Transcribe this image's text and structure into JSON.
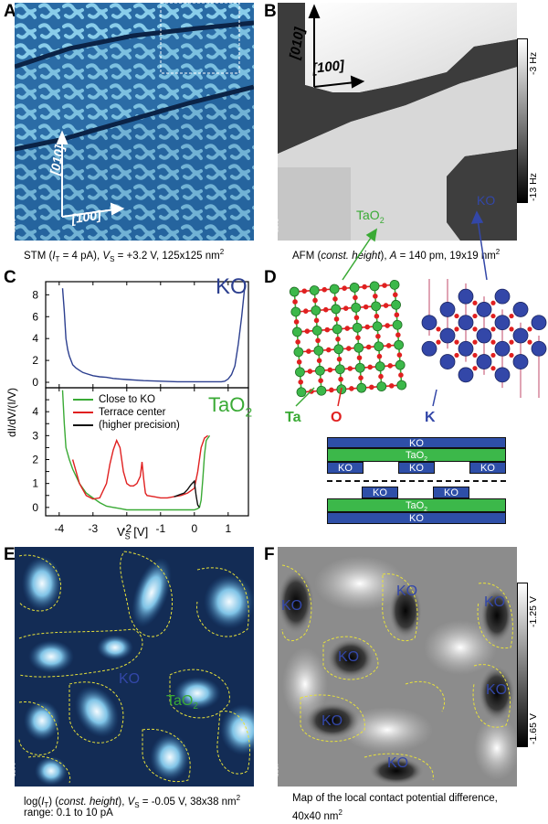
{
  "panels": {
    "A": {
      "letter": "A",
      "id_tag": "3666",
      "caption_prefix": "STM (",
      "caption_it": "I",
      "caption_sub": "T",
      "caption_mid": " = 4 pA), ",
      "caption_v": "V",
      "caption_vsub": "S",
      "caption_rest": " = +3.2 V, 125x125 nm",
      "caption_sup": "2",
      "dir1": "[010]",
      "dir2": "[100]"
    },
    "B": {
      "letter": "B",
      "id_tag": "3571",
      "caption_a": "AFM (",
      "caption_it": "const. height",
      "caption_b": "), ",
      "caption_A": "A",
      "caption_rest": " = 140 pm, 19x19 nm",
      "caption_sup": "2",
      "dir1": "[010]",
      "dir2": "[100]",
      "scale_top": "-3 Hz",
      "scale_bottom": "-13 Hz",
      "label_ko": "KO",
      "label_tao": "TaO",
      "label_tao_sub": "2"
    },
    "C": {
      "letter": "C"
    },
    "D": {
      "letter": "D",
      "label_ta": "Ta",
      "label_o": "O",
      "label_k": "K",
      "stack1": [
        "KO",
        "TaO",
        "KO",
        "KO",
        "KO"
      ],
      "stack2": [
        "KO",
        "KO",
        "TaO",
        "KO"
      ],
      "sub2": "2"
    },
    "E": {
      "letter": "E",
      "id_tag": "3574",
      "caption_line1_a": "log(",
      "caption_line1_it": "I",
      "caption_line1_sub": "T",
      "caption_line1_b": ") (",
      "caption_line1_it2": "const. height",
      "caption_line1_c": "), ",
      "caption_line1_v": "V",
      "caption_line1_vsub": "S",
      "caption_line1_rest": " = -0.05 V, 38x38 nm",
      "caption_sup": "2",
      "caption_line2": "range: 0.1 to 10 pA",
      "label_ko": "KO",
      "label_tao": "TaO",
      "label_tao_sub": "2"
    },
    "F": {
      "letter": "F",
      "id_tag": "3567",
      "caption_line1": "Map of the local contact potential difference,",
      "caption_line2": "40x40 nm",
      "caption_sup": "2",
      "scale_top": "-1.25 V",
      "scale_bottom": "-1.65 V",
      "ko_labels": [
        "KO",
        "KO",
        "KO",
        "KO",
        "KO",
        "KO",
        "KO"
      ]
    }
  },
  "chart_data": {
    "type": "line",
    "xlabel": "V",
    "xlabel_sub": "S",
    "xlabel_unit": " [V]",
    "ylabel": "dI/dV/(I/V)",
    "xlim": [
      -4.4,
      1.6
    ],
    "x_ticks": [
      -4,
      -3,
      -2,
      -1,
      0,
      1
    ],
    "top_panel": {
      "label": "KO",
      "ylim": [
        -0.5,
        9.2
      ],
      "y_ticks": [
        0,
        2,
        4,
        6,
        8
      ],
      "series": [
        {
          "color": "#2c3f8f",
          "x": [
            -3.9,
            -3.85,
            -3.8,
            -3.75,
            -3.7,
            -3.6,
            -3.5,
            -3.4,
            -3.3,
            -3.2,
            -3.0,
            -2.8,
            -2.6,
            -2.4,
            -2.2,
            -2.0,
            -1.5,
            -1.0,
            -0.5,
            0.0,
            0.5,
            0.8,
            0.9,
            1.0,
            1.1,
            1.2,
            1.3,
            1.4,
            1.5
          ],
          "y": [
            8.6,
            6.5,
            4.0,
            3.0,
            2.4,
            1.6,
            1.3,
            1.1,
            0.9,
            0.8,
            0.6,
            0.5,
            0.45,
            0.35,
            0.3,
            0.25,
            0.15,
            0.1,
            0.05,
            0.05,
            0.05,
            0.05,
            0.1,
            0.3,
            0.7,
            1.5,
            3.5,
            6.0,
            9.0
          ]
        }
      ]
    },
    "bottom_panel": {
      "label": "TaO",
      "label_sub": "2",
      "ylim": [
        -0.35,
        5.0
      ],
      "y_ticks": [
        0,
        0.5,
        1,
        1.5,
        2,
        2.5,
        3,
        3.5,
        4,
        4.5
      ],
      "y_tick_labels": [
        "0",
        "",
        "1",
        "",
        "2",
        "",
        "3",
        "",
        "4",
        ""
      ],
      "legend": [
        "Close to KO",
        "Terrace center",
        "(higher precision)"
      ],
      "series": [
        {
          "name": "Close to KO",
          "color": "#3aaa35",
          "x": [
            -3.9,
            -3.85,
            -3.8,
            -3.7,
            -3.6,
            -3.5,
            -3.4,
            -3.3,
            -3.2,
            -3.0,
            -2.8,
            -2.6,
            -2.4,
            -2.2,
            -2.0,
            -1.5,
            -1.0,
            -0.5,
            0.0,
            0.1,
            0.15,
            0.2,
            0.25,
            0.3,
            0.35,
            0.4,
            0.45
          ],
          "y": [
            4.9,
            3.5,
            2.5,
            2.0,
            1.6,
            1.3,
            1.0,
            0.8,
            0.6,
            0.4,
            0.2,
            0.05,
            0.0,
            -0.05,
            -0.1,
            -0.1,
            -0.1,
            -0.1,
            -0.1,
            -0.05,
            0.0,
            0.3,
            1.2,
            2.2,
            2.8,
            2.9,
            3.0
          ]
        },
        {
          "name": "Terrace center",
          "color": "#e02020",
          "x": [
            -3.6,
            -3.5,
            -3.4,
            -3.2,
            -3.0,
            -2.8,
            -2.6,
            -2.5,
            -2.4,
            -2.3,
            -2.2,
            -2.1,
            -2.0,
            -1.9,
            -1.8,
            -1.7,
            -1.6,
            -1.55,
            -1.5,
            -1.45,
            -1.4,
            -1.2,
            -1.0,
            -0.8,
            -0.6,
            -0.4,
            -0.2,
            0.0,
            0.1,
            0.2,
            0.3,
            0.4
          ],
          "y": [
            2.0,
            1.5,
            1.0,
            0.5,
            0.35,
            0.4,
            1.0,
            1.8,
            2.4,
            2.8,
            2.5,
            1.5,
            1.0,
            0.9,
            0.9,
            1.0,
            1.3,
            1.9,
            1.2,
            0.6,
            0.5,
            0.45,
            0.4,
            0.4,
            0.45,
            0.5,
            0.6,
            0.8,
            1.5,
            2.5,
            2.9,
            3.0
          ]
        },
        {
          "name": "(higher precision)",
          "color": "#111111",
          "x": [
            -0.6,
            -0.5,
            -0.4,
            -0.3,
            -0.2,
            -0.1,
            0.0,
            0.05,
            0.1,
            0.15
          ],
          "y": [
            0.45,
            0.5,
            0.55,
            0.6,
            0.75,
            0.95,
            1.1,
            0.5,
            0.1,
            0.0
          ]
        }
      ]
    }
  }
}
